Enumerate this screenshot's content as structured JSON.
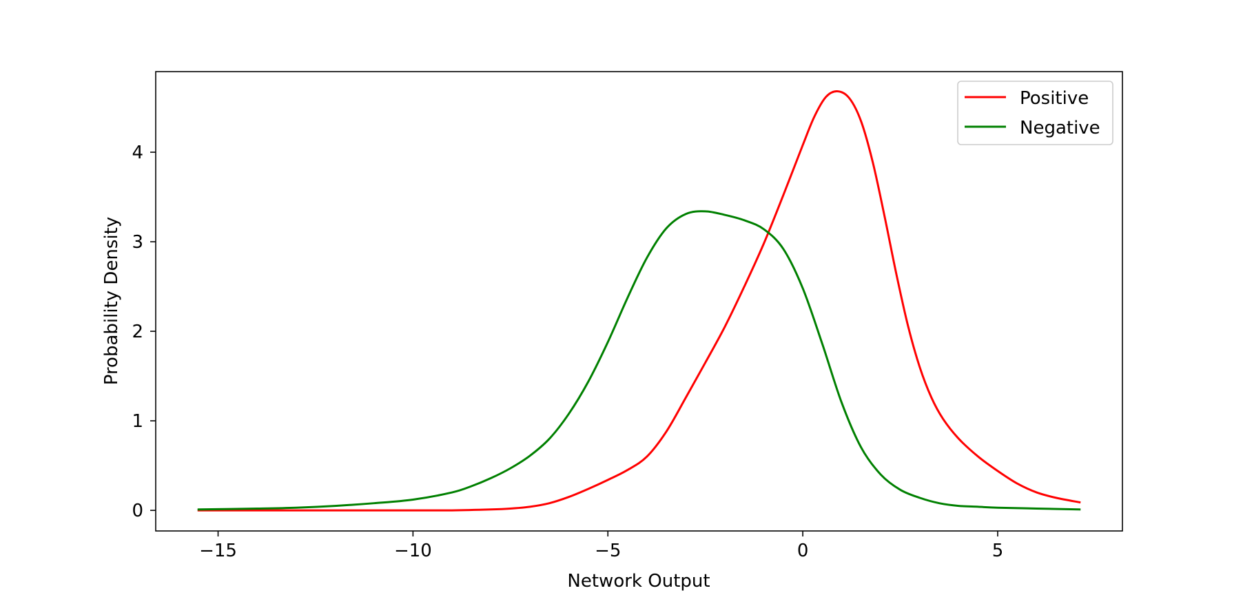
{
  "chart_data": {
    "type": "line",
    "title": "",
    "xlabel": "Network Output",
    "ylabel": "Probability Density",
    "xlim": [
      -16.6,
      8.2
    ],
    "ylim": [
      -0.23,
      4.9
    ],
    "x_ticks": [
      -15,
      -10,
      -5,
      0,
      5
    ],
    "x_tick_labels": [
      "−15",
      "−10",
      "−5",
      "0",
      "5"
    ],
    "y_ticks": [
      0,
      1,
      2,
      3,
      4
    ],
    "y_tick_labels": [
      "0",
      "1",
      "2",
      "3",
      "4"
    ],
    "grid": false,
    "legend_position": "top-right",
    "series": [
      {
        "name": "Positive",
        "color": "#ff0000",
        "x": [
          -15.5,
          -14,
          -12,
          -10,
          -9,
          -8,
          -7.5,
          -7,
          -6.5,
          -6,
          -5.5,
          -5,
          -4.5,
          -4,
          -3.5,
          -3,
          -2.5,
          -2,
          -1.5,
          -1,
          -0.5,
          0,
          0.3,
          0.6,
          0.9,
          1.2,
          1.5,
          1.8,
          2.1,
          2.4,
          2.7,
          3,
          3.3,
          3.6,
          4,
          4.5,
          5,
          5.5,
          6,
          6.5,
          7.1
        ],
        "y": [
          0,
          0,
          0,
          0,
          0,
          0.01,
          0.02,
          0.04,
          0.08,
          0.15,
          0.24,
          0.34,
          0.45,
          0.6,
          0.88,
          1.26,
          1.65,
          2.05,
          2.5,
          2.98,
          3.52,
          4.08,
          4.4,
          4.62,
          4.68,
          4.6,
          4.34,
          3.88,
          3.28,
          2.64,
          2.06,
          1.6,
          1.26,
          1.02,
          0.8,
          0.6,
          0.44,
          0.3,
          0.2,
          0.14,
          0.09
        ]
      },
      {
        "name": "Negative",
        "color": "#008000",
        "x": [
          -15.5,
          -14,
          -13,
          -12,
          -11,
          -10,
          -9,
          -8.5,
          -8,
          -7.5,
          -7,
          -6.5,
          -6,
          -5.5,
          -5,
          -4.5,
          -4,
          -3.5,
          -3,
          -2.5,
          -2,
          -1.5,
          -1,
          -0.5,
          0,
          0.5,
          1,
          1.5,
          2,
          2.5,
          3,
          3.5,
          4,
          4.5,
          5,
          6,
          7.1
        ],
        "y": [
          0.01,
          0.02,
          0.03,
          0.05,
          0.08,
          0.12,
          0.2,
          0.27,
          0.36,
          0.47,
          0.61,
          0.8,
          1.08,
          1.44,
          1.88,
          2.37,
          2.82,
          3.15,
          3.31,
          3.34,
          3.3,
          3.24,
          3.14,
          2.92,
          2.48,
          1.86,
          1.2,
          0.7,
          0.4,
          0.23,
          0.14,
          0.08,
          0.05,
          0.04,
          0.03,
          0.02,
          0.01
        ]
      }
    ]
  }
}
